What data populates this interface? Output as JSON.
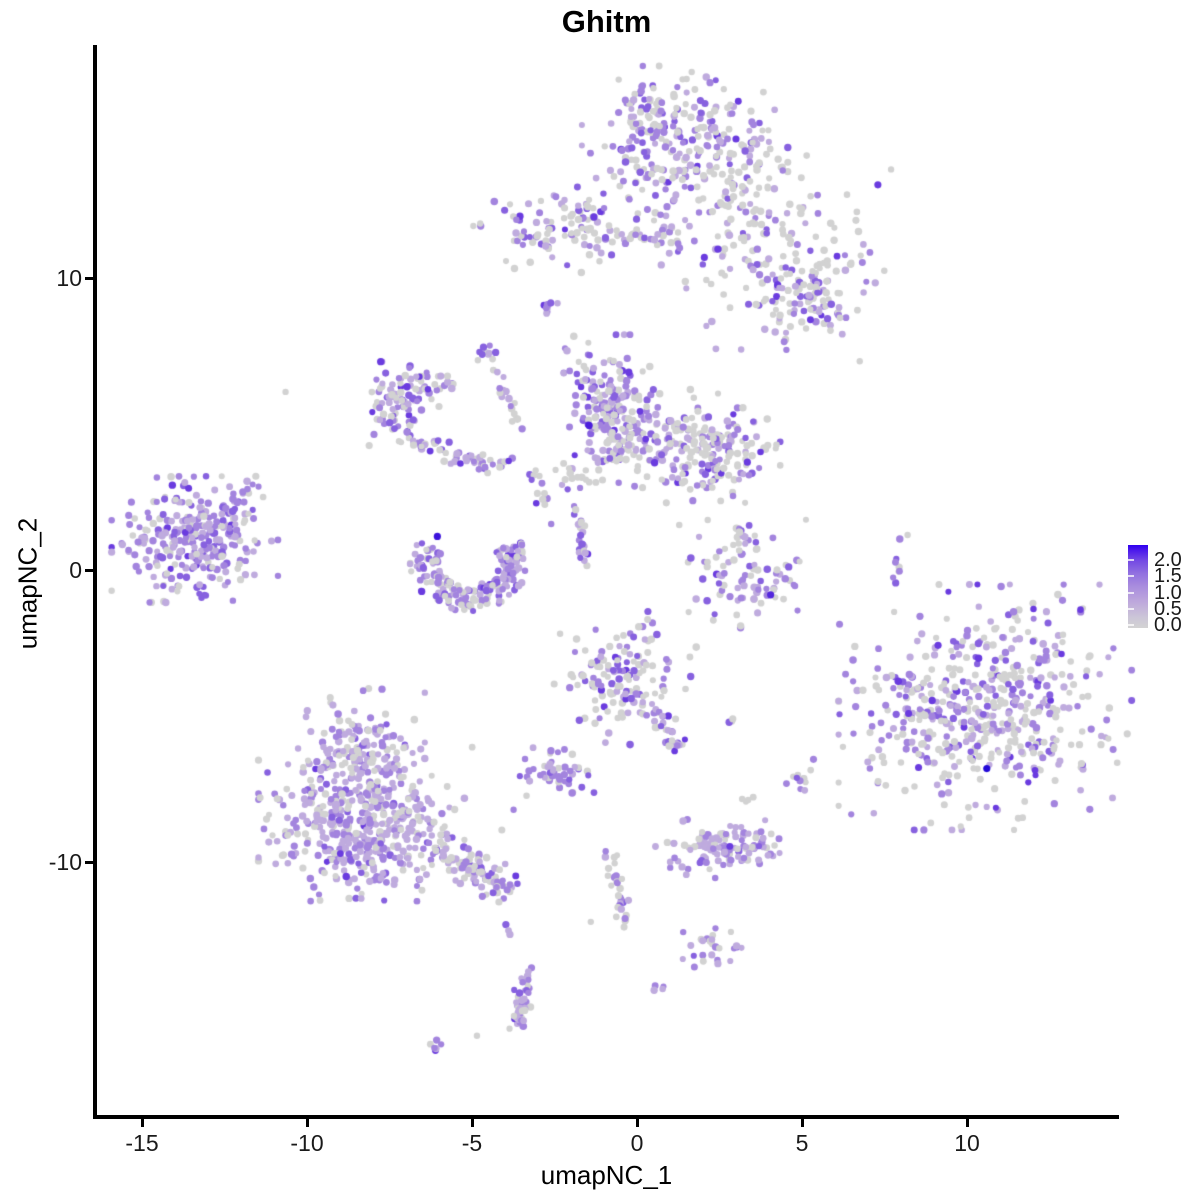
{
  "chart_data": {
    "type": "scatter",
    "title": "Ghitm",
    "xlabel": "umapNC_1",
    "ylabel": "umapNC_2",
    "x_ticks": [
      "-15",
      "-10",
      "-5",
      "0",
      "5",
      "10"
    ],
    "x_tick_values": [
      -15,
      -10,
      -5,
      0,
      5,
      10
    ],
    "y_ticks": [
      "10",
      "0",
      "-10"
    ],
    "y_tick_values": [
      10,
      0,
      -10
    ],
    "xlim": [
      -16.4,
      14.6
    ],
    "ylim": [
      -18.7,
      18.0
    ],
    "grid": false,
    "legend": {
      "position": "right",
      "labels": [
        "2.0",
        "1.5",
        "1.0",
        "0.5",
        "0.0"
      ],
      "values": [
        2.0,
        1.5,
        1.0,
        0.5,
        0.0
      ],
      "low_color": "#D3D3D3",
      "high_color": "#2E00F0"
    },
    "point_palette": {
      "grey": "#D2D2D2",
      "light": "#BFABDE",
      "mid": "#A384DE",
      "deep": "#8761DF",
      "dark": "#6A3BDF"
    },
    "weight_presets": {
      "G": [
        0.62,
        0.16,
        0.13,
        0.07,
        0.02
      ],
      "M": [
        0.46,
        0.2,
        0.21,
        0.1,
        0.03
      ],
      "P": [
        0.3,
        0.24,
        0.28,
        0.14,
        0.04
      ],
      "PP": [
        0.18,
        0.28,
        0.34,
        0.16,
        0.04
      ],
      "L": [
        0.2,
        0.45,
        0.27,
        0.07,
        0.01
      ]
    },
    "clusters": [
      {
        "name": "top-main",
        "shape": "blob",
        "x": 1.45,
        "y": 14.62,
        "sx": 1.3,
        "sy": 1.1,
        "n": 230,
        "w": "M"
      },
      {
        "name": "top-left-lobe",
        "shape": "blob",
        "x": 0.35,
        "y": 15.55,
        "sx": 0.45,
        "sy": 0.5,
        "n": 40,
        "w": "M"
      },
      {
        "name": "top-tail",
        "shape": "blob",
        "x": 3.0,
        "y": 12.6,
        "sx": 0.7,
        "sy": 0.9,
        "n": 45,
        "w": "M"
      },
      {
        "name": "band-left",
        "shape": "blob",
        "x": -2.2,
        "y": 11.75,
        "sx": 1.15,
        "sy": 0.65,
        "n": 110,
        "w": "M"
      },
      {
        "name": "band-bridge",
        "shape": "line",
        "x": -0.8,
        "y": 11.4,
        "x2": 0.7,
        "y2": 11.3,
        "jitter": 0.18,
        "n": 18,
        "w": "G"
      },
      {
        "name": "band-mid-blob",
        "shape": "blob",
        "x": 1.05,
        "y": 11.7,
        "sx": 0.3,
        "sy": 0.55,
        "n": 22,
        "w": "M"
      },
      {
        "name": "band-right",
        "shape": "blob",
        "x": 4.4,
        "y": 10.9,
        "sx": 1.5,
        "sy": 1.4,
        "n": 150,
        "w": "G"
      },
      {
        "name": "band-right-dense",
        "shape": "blob",
        "x": 5.3,
        "y": 9.3,
        "sx": 0.8,
        "sy": 0.7,
        "n": 70,
        "w": "M"
      },
      {
        "name": "tiny-spot",
        "shape": "line",
        "x": -2.85,
        "y": 8.6,
        "x2": -2.6,
        "y2": 9.15,
        "jitter": 0.08,
        "n": 10,
        "w": "PP"
      },
      {
        "name": "arc-blob",
        "shape": "blob",
        "x": -7.2,
        "y": 5.5,
        "sx": 0.5,
        "sy": 0.68,
        "n": 85,
        "w": "P"
      },
      {
        "name": "arc-top",
        "shape": "box",
        "x": -6.4,
        "y": 6.35,
        "sx": 0.85,
        "sy": 0.3,
        "n": 28,
        "w": "G"
      },
      {
        "name": "arc-sweep",
        "shape": "curve",
        "pts": [
          [
            -7.0,
            4.5
          ],
          [
            -5.6,
            3.6
          ],
          [
            -4.0,
            3.6
          ]
        ],
        "jitter": 0.18,
        "n": 55,
        "w": "M"
      },
      {
        "name": "diag-strand",
        "shape": "line",
        "x": -4.55,
        "y": 7.6,
        "x2": -3.5,
        "y2": 4.85,
        "jitter": 0.12,
        "n": 20,
        "w": "P"
      },
      {
        "name": "diag-top-blob",
        "shape": "blob",
        "x": -4.6,
        "y": 7.5,
        "sx": 0.15,
        "sy": 0.25,
        "n": 8,
        "w": "P"
      },
      {
        "name": "connector",
        "shape": "line",
        "x": -3.25,
        "y": 3.5,
        "x2": -2.7,
        "y2": 1.8,
        "jitter": 0.15,
        "n": 12,
        "w": "G"
      },
      {
        "name": "center-lobe",
        "shape": "blob",
        "x": -0.9,
        "y": 5.9,
        "sx": 0.55,
        "sy": 0.9,
        "n": 150,
        "w": "P"
      },
      {
        "name": "center-body",
        "shape": "blob",
        "x": 0.25,
        "y": 4.5,
        "sx": 0.95,
        "sy": 0.7,
        "n": 130,
        "w": "M"
      },
      {
        "name": "center-right",
        "shape": "blob",
        "x": 2.3,
        "y": 4.1,
        "sx": 0.85,
        "sy": 0.75,
        "n": 150,
        "w": "M"
      },
      {
        "name": "center-left-tail",
        "shape": "blob",
        "x": -1.8,
        "y": 3.3,
        "sx": 0.45,
        "sy": 0.35,
        "n": 25,
        "w": "M"
      },
      {
        "name": "left-cluster",
        "shape": "blob",
        "x": -13.4,
        "y": 1.05,
        "sx": 1.05,
        "sy": 0.9,
        "n": 290,
        "w": "PP"
      },
      {
        "name": "left-arm",
        "shape": "line",
        "x": -12.4,
        "y": 2.05,
        "x2": -11.6,
        "y2": 2.95,
        "jitter": 0.12,
        "n": 16,
        "w": "P"
      },
      {
        "name": "crescent",
        "shape": "ring",
        "x": -5.1,
        "y": 0.3,
        "r": 1.35,
        "rj": 0.45,
        "a0": 155,
        "a1": 385,
        "ey": 0.95,
        "n": 190,
        "w": "P"
      },
      {
        "name": "mid-strand",
        "shape": "line",
        "x": -1.8,
        "y": 2.3,
        "x2": -1.65,
        "y2": 0.4,
        "jitter": 0.1,
        "n": 24,
        "w": "P"
      },
      {
        "name": "small-right",
        "shape": "blob",
        "x": 3.2,
        "y": -0.2,
        "sx": 0.8,
        "sy": 0.8,
        "n": 85,
        "w": "M"
      },
      {
        "name": "small-right-arm",
        "shape": "line",
        "x": 3.35,
        "y": 1.75,
        "x2": 3.1,
        "y2": 0.8,
        "jitter": 0.1,
        "n": 10,
        "w": "M"
      },
      {
        "name": "right-strand",
        "shape": "line",
        "x": 8.05,
        "y": 1.05,
        "x2": 7.8,
        "y2": -0.6,
        "jitter": 0.07,
        "n": 8,
        "w": "M"
      },
      {
        "name": "right-big",
        "shape": "blob",
        "x": 10.55,
        "y": -4.7,
        "sx": 1.85,
        "sy": 1.75,
        "n": 500,
        "w": "M"
      },
      {
        "name": "right-big-arm",
        "shape": "blob",
        "x": 8.4,
        "y": -5.0,
        "sx": 0.4,
        "sy": 0.85,
        "n": 30,
        "w": "M"
      },
      {
        "name": "center-bottom",
        "shape": "blob",
        "x": -0.35,
        "y": -3.7,
        "sx": 0.9,
        "sy": 0.95,
        "n": 150,
        "w": "M"
      },
      {
        "name": "center-bottom-tail",
        "shape": "line",
        "x": 0.6,
        "y": -5.0,
        "x2": 1.25,
        "y2": -6.2,
        "jitter": 0.12,
        "n": 20,
        "w": "P"
      },
      {
        "name": "dot-pair-a",
        "shape": "blob",
        "x": 2.76,
        "y": -5.05,
        "sx": 0.08,
        "sy": 0.08,
        "n": 3,
        "w": "PP"
      },
      {
        "name": "small-purple-blob",
        "shape": "blob",
        "x": -2.35,
        "y": -6.95,
        "sx": 0.5,
        "sy": 0.36,
        "n": 48,
        "w": "PP"
      },
      {
        "name": "dot-pair-b",
        "shape": "blob",
        "x": 3.35,
        "y": -7.75,
        "sx": 0.1,
        "sy": 0.1,
        "n": 4,
        "w": "P"
      },
      {
        "name": "small-mixed",
        "shape": "blob",
        "x": 5.1,
        "y": -7.2,
        "sx": 0.28,
        "sy": 0.3,
        "n": 12,
        "w": "M"
      },
      {
        "name": "bl-top-lobe",
        "shape": "blob",
        "x": -8.35,
        "y": -6.1,
        "sx": 0.8,
        "sy": 0.85,
        "n": 140,
        "w": "L"
      },
      {
        "name": "bl-main",
        "shape": "blob",
        "x": -8.35,
        "y": -8.7,
        "sx": 1.3,
        "sy": 1.1,
        "n": 430,
        "w": "L"
      },
      {
        "name": "bl-arm",
        "shape": "line",
        "x": -6.2,
        "y": -9.45,
        "x2": -3.95,
        "y2": -10.9,
        "jitter": 0.3,
        "n": 95,
        "w": "M"
      },
      {
        "name": "bl-halo",
        "shape": "blob",
        "x": -8.3,
        "y": -8.0,
        "sx": 1.9,
        "sy": 1.6,
        "n": 45,
        "w": "G"
      },
      {
        "name": "hamburger",
        "shape": "blob",
        "x": 2.6,
        "y": -9.55,
        "sx": 0.85,
        "sy": 0.42,
        "n": 115,
        "w": "L"
      },
      {
        "name": "down-strand",
        "shape": "curve",
        "pts": [
          [
            -0.8,
            -9.5
          ],
          [
            -0.75,
            -10.8
          ],
          [
            -0.2,
            -12.2
          ]
        ],
        "jitter": 0.12,
        "n": 30,
        "w": "M"
      },
      {
        "name": "dot-pair-c",
        "shape": "blob",
        "x": -3.9,
        "y": -12.35,
        "sx": 0.07,
        "sy": 0.18,
        "n": 3,
        "w": "P"
      },
      {
        "name": "small-bottom",
        "shape": "blob",
        "x": 2.3,
        "y": -12.9,
        "sx": 0.38,
        "sy": 0.3,
        "n": 26,
        "w": "P"
      },
      {
        "name": "vert-blob",
        "shape": "curve",
        "pts": [
          [
            -3.35,
            -13.8
          ],
          [
            -3.45,
            -14.8
          ],
          [
            -3.55,
            -15.6
          ]
        ],
        "jitter": 0.14,
        "n": 50,
        "w": "L"
      },
      {
        "name": "dot-pair-d",
        "shape": "blob",
        "x": 0.65,
        "y": -14.25,
        "sx": 0.1,
        "sy": 0.15,
        "n": 4,
        "w": "PP"
      },
      {
        "name": "tiny-bottom",
        "shape": "blob",
        "x": -6.1,
        "y": -16.2,
        "sx": 0.18,
        "sy": 0.12,
        "n": 6,
        "w": "M"
      }
    ],
    "singles": [
      {
        "x": 6.75,
        "y": 7.15,
        "c": "grey"
      },
      {
        "x": -10.65,
        "y": 6.1,
        "c": "grey"
      },
      {
        "x": 1.4,
        "y": -12.4,
        "c": "mid"
      },
      {
        "x": -1.4,
        "y": -12.05,
        "c": "grey"
      },
      {
        "x": -4.85,
        "y": -15.95,
        "c": "grey"
      },
      {
        "x": 8.2,
        "y": 1.2,
        "c": "grey"
      }
    ],
    "highlights": [
      {
        "x": 10.6,
        "y": -6.8,
        "color": "#2208D8"
      },
      {
        "x": -6.05,
        "y": 1.15,
        "color": "#3B12DC"
      },
      {
        "x": -1.45,
        "y": 4.95,
        "color": "#4B1DDC"
      },
      {
        "x": 4.05,
        "y": -0.85,
        "color": "#5326DD"
      }
    ]
  }
}
